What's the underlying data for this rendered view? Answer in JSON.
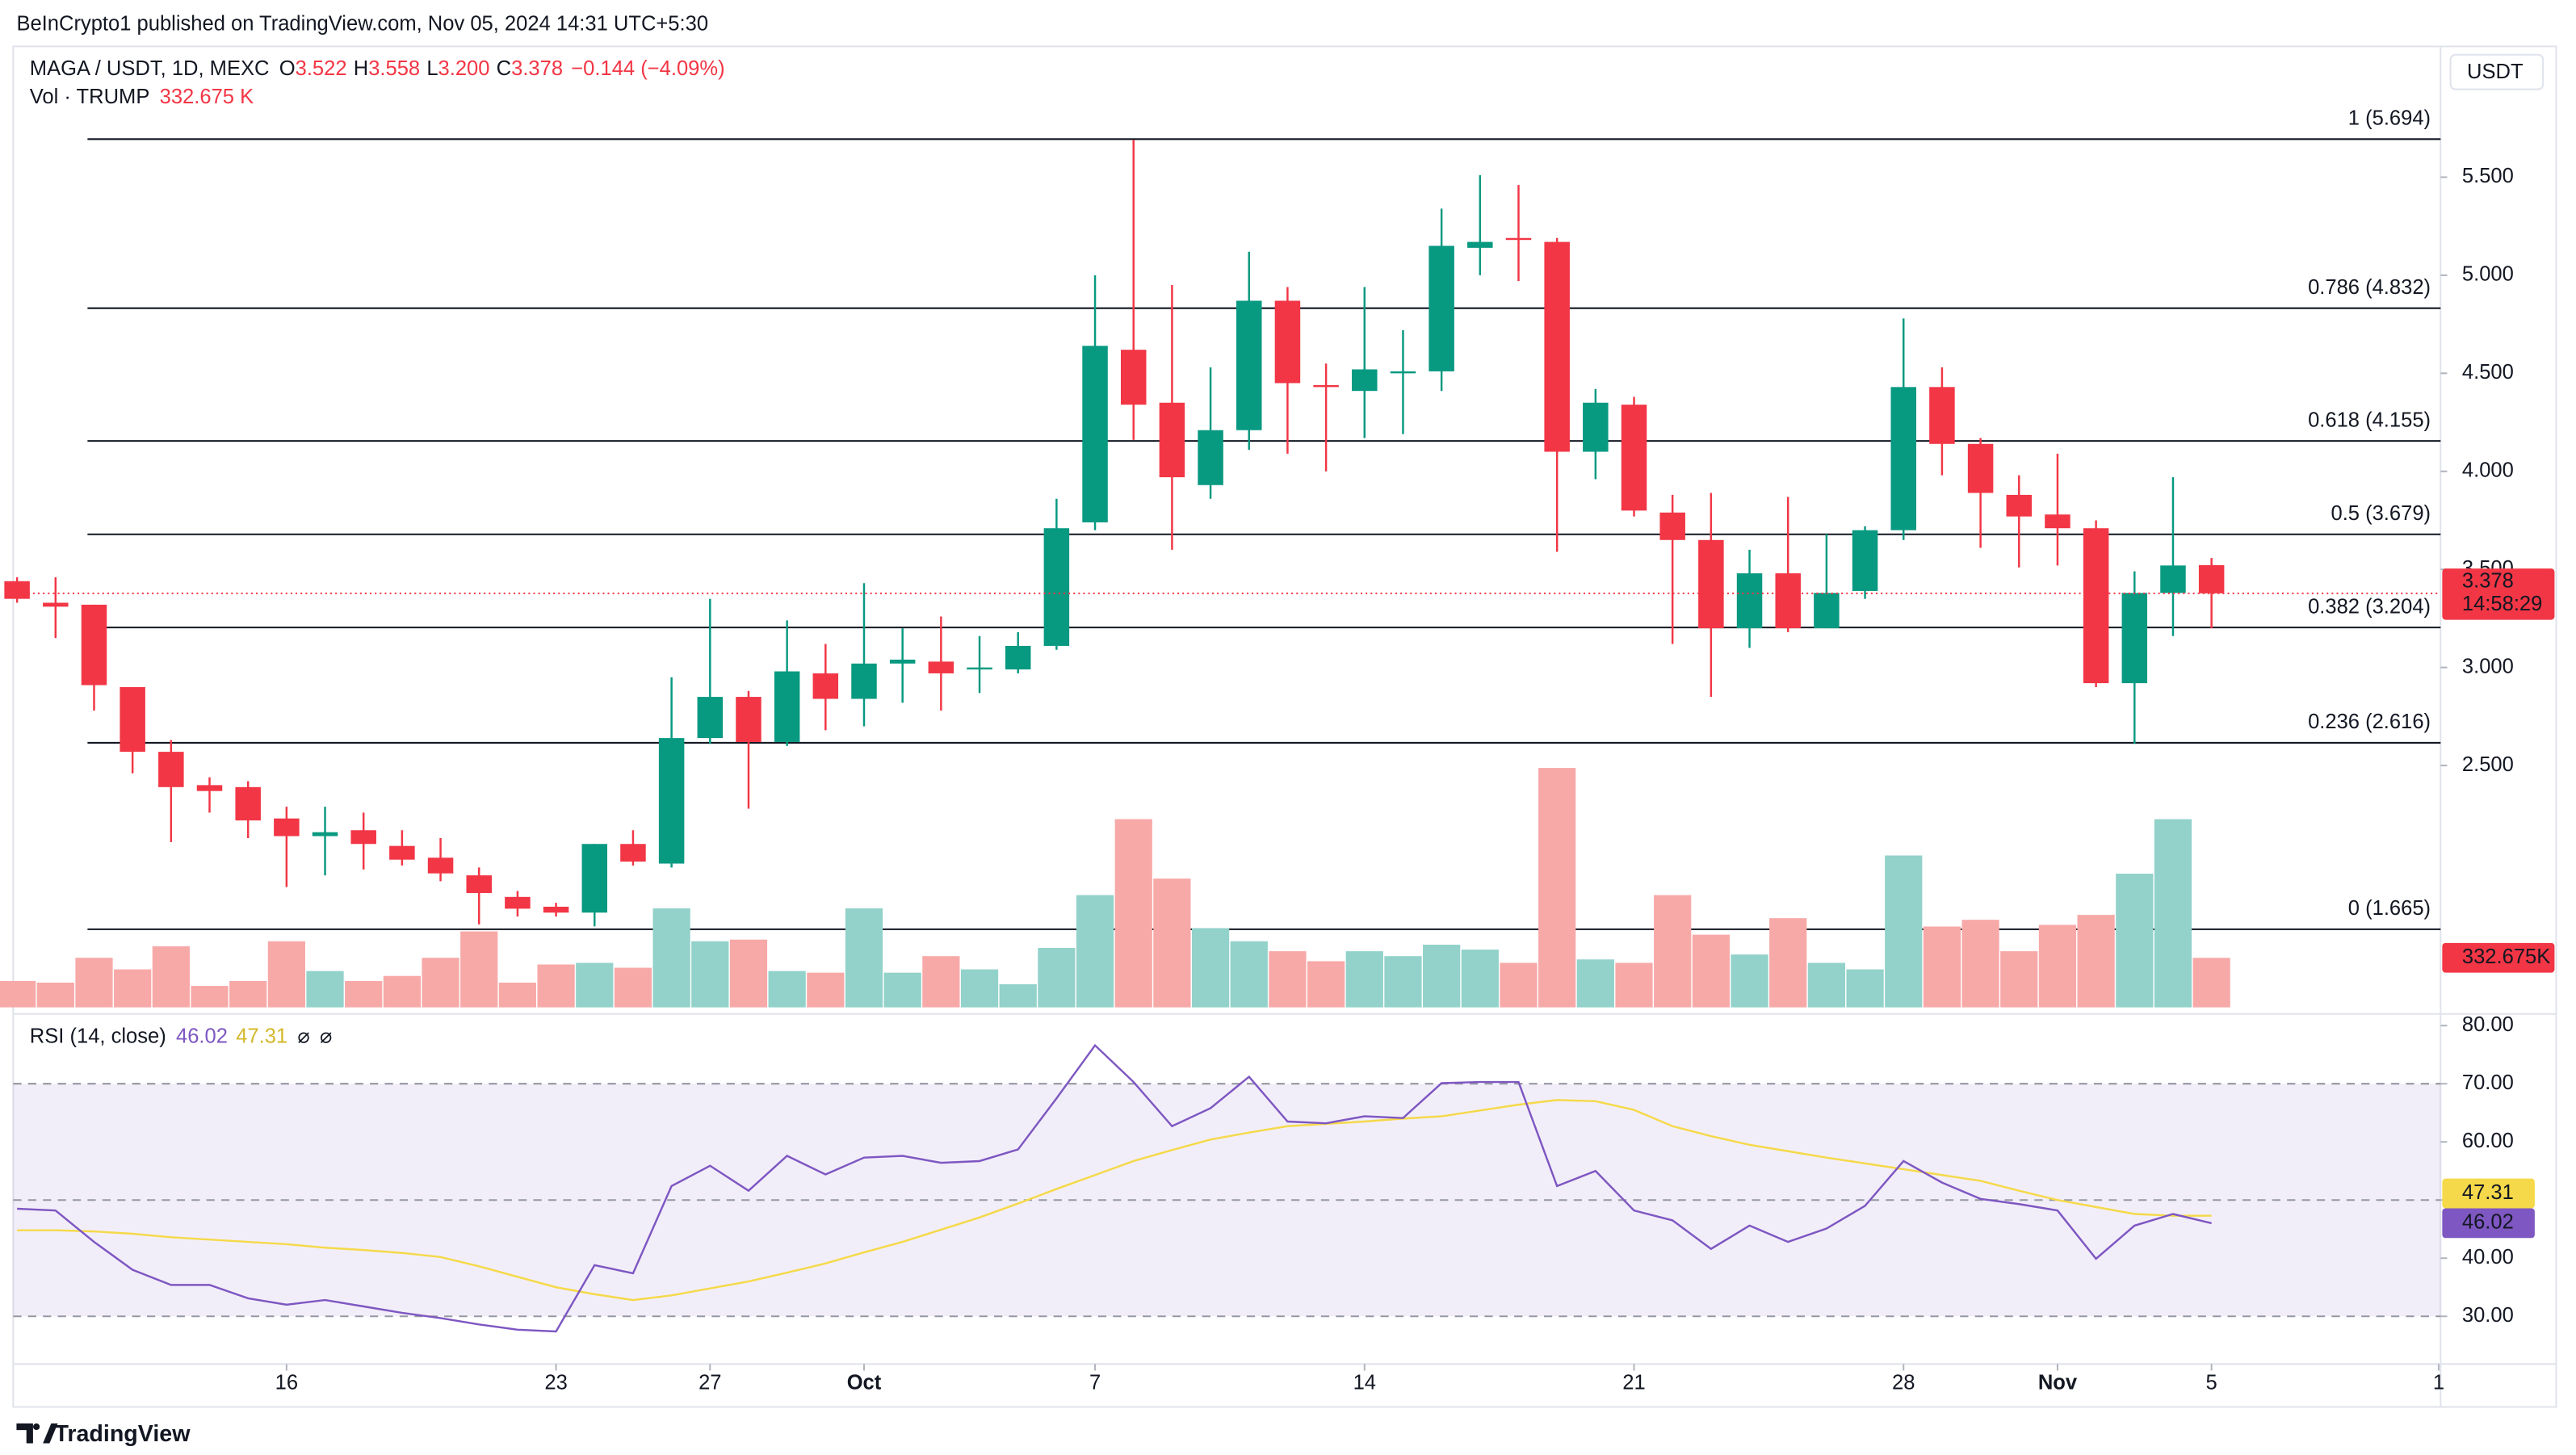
{
  "header": {
    "published": "BeInCrypto1 published on TradingView.com, Nov 05, 2024 14:31 UTC+5:30",
    "symbol": "MAGA / USDT, 1D, MEXC",
    "ohlc": [
      {
        "key": "O",
        "value": "3.522"
      },
      {
        "key": "H",
        "value": "3.558"
      },
      {
        "key": "L",
        "value": "3.200"
      },
      {
        "key": "C",
        "value": "3.378"
      }
    ],
    "change": "−0.144 (−4.09%)",
    "vol_title": "Vol · TRUMP",
    "vol_value": "332.675 K",
    "currency": "USDT",
    "brand": "TradingView"
  },
  "chart_data": [
    {
      "type": "candlestick",
      "up_color": "#089981",
      "down_color": "#f23645",
      "xlim": [
        -0.1,
        62.95
      ],
      "xticks": [
        {
          "value": 7,
          "label": "16"
        },
        {
          "value": 14,
          "label": "23"
        },
        {
          "value": 18,
          "label": "27"
        },
        {
          "value": 22,
          "label": "Oct"
        },
        {
          "value": 28,
          "label": "7"
        },
        {
          "value": 35,
          "label": "14"
        },
        {
          "value": 42,
          "label": "21"
        },
        {
          "value": 49,
          "label": "28"
        },
        {
          "value": 53,
          "label": "Nov"
        },
        {
          "value": 57,
          "label": "5"
        },
        {
          "value": 62.9,
          "label": "1"
        }
      ],
      "ylim": [
        1.25,
        6.15
      ],
      "yticks": [
        {
          "value": 2.5,
          "label": "2.500"
        },
        {
          "value": 3,
          "label": "3.000"
        },
        {
          "value": 3.5,
          "label": "3.500"
        },
        {
          "value": 4,
          "label": "4.000"
        },
        {
          "value": 4.5,
          "label": "4.500"
        },
        {
          "value": 5,
          "label": "5.000"
        },
        {
          "value": 5.5,
          "label": "5.500"
        }
      ],
      "fib_levels": [
        {
          "value": 5.694,
          "label": "1 (5.694)"
        },
        {
          "value": 4.832,
          "label": "0.786 (4.832)"
        },
        {
          "value": 4.155,
          "label": "0.618 (4.155)"
        },
        {
          "value": 3.679,
          "label": "0.5 (3.679)"
        },
        {
          "value": 3.204,
          "label": "0.382 (3.204)"
        },
        {
          "value": 2.616,
          "label": "0.236 (2.616)"
        },
        {
          "value": 1.665,
          "label": "0 (1.665)"
        }
      ],
      "open": [
        3.44,
        3.33,
        3.32,
        2.9,
        2.57,
        2.4,
        2.39,
        2.23,
        2.14,
        2.17,
        2.09,
        2.03,
        1.94,
        1.83,
        1.78,
        1.75,
        2.1,
        2.0,
        2.64,
        2.85,
        2.62,
        2.97,
        2.84,
        3.02,
        3.03,
        2.99,
        2.99,
        3.11,
        3.74,
        4.62,
        4.35,
        3.93,
        4.21,
        4.87,
        4.44,
        4.41,
        4.5,
        4.51,
        5.14,
        5.19,
        5.17,
        4.1,
        4.34,
        3.79,
        3.65,
        3.2,
        3.48,
        3.2,
        3.39,
        3.7,
        4.43,
        4.14,
        3.88,
        3.78,
        3.71,
        2.92,
        3.38,
        3.522
      ],
      "high": [
        3.46,
        3.46,
        3.32,
        2.9,
        2.63,
        2.44,
        2.42,
        2.29,
        2.29,
        2.26,
        2.17,
        2.13,
        1.98,
        1.86,
        1.8,
        2.1,
        2.17,
        2.95,
        3.35,
        2.88,
        3.24,
        3.12,
        3.43,
        3.2,
        3.26,
        3.16,
        3.18,
        3.86,
        5.0,
        5.69,
        4.95,
        4.53,
        5.12,
        4.94,
        4.55,
        4.94,
        4.72,
        5.34,
        5.51,
        5.46,
        5.19,
        4.42,
        4.38,
        3.88,
        3.89,
        3.6,
        3.87,
        3.68,
        3.72,
        4.78,
        4.53,
        4.17,
        3.98,
        4.09,
        3.75,
        3.49,
        3.97,
        3.558
      ],
      "low": [
        3.33,
        3.15,
        2.78,
        2.46,
        2.11,
        2.26,
        2.13,
        1.88,
        1.94,
        1.97,
        1.99,
        1.91,
        1.69,
        1.73,
        1.73,
        1.68,
        1.99,
        1.98,
        2.61,
        2.28,
        2.6,
        2.68,
        2.7,
        2.82,
        2.78,
        2.87,
        2.97,
        3.09,
        3.7,
        4.16,
        3.6,
        3.86,
        4.11,
        4.09,
        4.0,
        4.17,
        4.19,
        4.41,
        5.0,
        4.97,
        3.59,
        3.96,
        3.77,
        3.12,
        2.85,
        3.1,
        3.18,
        3.2,
        3.35,
        3.65,
        3.98,
        3.61,
        3.51,
        3.52,
        2.9,
        2.61,
        3.16,
        3.2
      ],
      "close": [
        3.35,
        3.31,
        2.91,
        2.57,
        2.39,
        2.37,
        2.22,
        2.14,
        2.16,
        2.1,
        2.02,
        1.95,
        1.85,
        1.77,
        1.75,
        2.1,
        2.01,
        2.64,
        2.85,
        2.62,
        2.98,
        2.84,
        3.02,
        3.04,
        2.97,
        3.0,
        3.11,
        3.71,
        4.64,
        4.34,
        3.97,
        4.21,
        4.87,
        4.45,
        4.43,
        4.52,
        4.51,
        5.15,
        5.17,
        5.18,
        4.1,
        4.35,
        3.8,
        3.65,
        3.2,
        3.48,
        3.2,
        3.38,
        3.7,
        4.43,
        4.14,
        3.89,
        3.77,
        3.71,
        2.92,
        3.38,
        3.52,
        3.378
      ],
      "countdown": "14:58:29"
    },
    {
      "type": "bar",
      "up_color": "#92d2ca",
      "down_color": "#f7a9a8",
      "values": [
        177000,
        166000,
        333000,
        255000,
        410000,
        144000,
        177000,
        444000,
        244000,
        177000,
        211000,
        333000,
        510000,
        166000,
        288000,
        299000,
        266000,
        665000,
        444000,
        455000,
        244000,
        233000,
        665000,
        233000,
        344000,
        255000,
        155000,
        399000,
        754000,
        1264000,
        865000,
        532000,
        444000,
        377000,
        310000,
        377000,
        344000,
        421000,
        388000,
        299000,
        1608000,
        322000,
        299000,
        754000,
        488000,
        355000,
        599000,
        299000,
        255000,
        1020000,
        543000,
        588000,
        377000,
        554000,
        621000,
        898000,
        1264000,
        332675
      ],
      "current_label": "332.675K"
    },
    {
      "type": "line",
      "title": "RSI (14, close)",
      "icons": [
        "⌀",
        "⌀"
      ],
      "ylim": [
        21.8,
        82
      ],
      "yticks": [
        {
          "value": 30,
          "label": "30.00"
        },
        {
          "value": 40,
          "label": "40.00"
        },
        {
          "value": 50,
          "label": "50.00"
        },
        {
          "value": 60,
          "label": "60.00"
        },
        {
          "value": 70,
          "label": "70.00"
        },
        {
          "value": 80,
          "label": "80.00"
        }
      ],
      "levels": [
        70,
        50,
        30
      ],
      "band_color": "#7e57c2",
      "series": [
        {
          "color": "#7e57c2",
          "values": [
            48.5,
            48.2,
            42.8,
            38.0,
            35.4,
            35.4,
            33.1,
            32.0,
            32.8,
            31.7,
            30.6,
            29.7,
            28.6,
            27.7,
            27.4,
            38.8,
            37.4,
            52.4,
            55.9,
            51.6,
            57.6,
            54.4,
            57.3,
            57.6,
            56.4,
            56.7,
            58.7,
            67.5,
            76.6,
            70.3,
            62.7,
            65.8,
            71.2,
            63.5,
            63.2,
            64.4,
            64.1,
            70.1,
            70.3,
            70.3,
            52.4,
            55.0,
            48.2,
            46.5,
            41.6,
            45.6,
            42.8,
            45.1,
            49.0,
            56.7,
            53.0,
            50.2,
            49.3,
            48.2,
            39.9,
            45.6,
            47.6,
            46.02
          ]
        },
        {
          "color": "#f5d94a",
          "values": [
            44.8,
            44.8,
            44.6,
            44.2,
            43.6,
            43.2,
            42.8,
            42.4,
            41.8,
            41.4,
            40.9,
            40.2,
            38.6,
            36.8,
            35.0,
            33.8,
            32.8,
            33.6,
            34.8,
            36.0,
            37.5,
            39.1,
            41.0,
            42.8,
            44.9,
            47.0,
            49.4,
            51.9,
            54.3,
            56.7,
            58.6,
            60.4,
            61.6,
            62.7,
            63.1,
            63.5,
            64.0,
            64.4,
            65.4,
            66.4,
            67.2,
            67.0,
            65.5,
            62.7,
            61.0,
            59.5,
            58.4,
            57.3,
            56.3,
            55.3,
            54.3,
            53.3,
            51.6,
            50.0,
            48.8,
            47.6,
            47.3,
            47.31
          ]
        }
      ]
    }
  ]
}
